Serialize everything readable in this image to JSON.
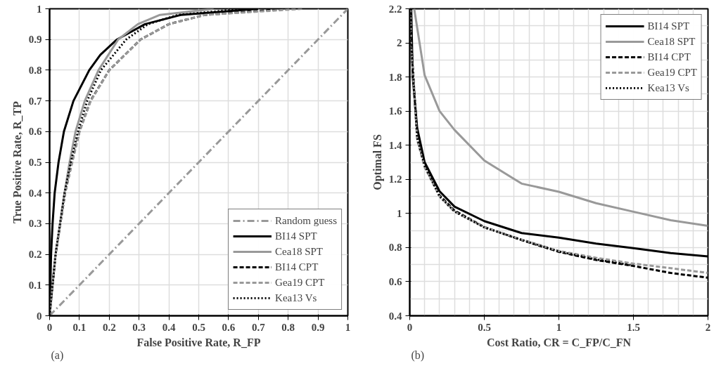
{
  "chart_data": [
    {
      "type": "line",
      "xlabel": "False Positive Rate, R_FP",
      "ylabel": "True Positive Rate, R_TP",
      "annotations": [
        "(a)"
      ],
      "xlim": [
        0,
        1
      ],
      "ylim": [
        0,
        1
      ],
      "xticks": [
        0,
        0.1,
        0.2,
        0.3,
        0.4,
        0.5,
        0.6,
        0.7,
        0.8,
        0.9,
        1
      ],
      "yticks": [
        0,
        0.1,
        0.2,
        0.3,
        0.4,
        0.5,
        0.6,
        0.7,
        0.8,
        0.9,
        1
      ],
      "grid": true,
      "legend": "bottom right",
      "series": [
        {
          "name": "Random guess",
          "color": "#999999",
          "line_style": "dashdot",
          "x": [
            0,
            1
          ],
          "values": [
            0,
            1
          ]
        },
        {
          "name": "BI14 SPT",
          "color": "#000000",
          "line_style": "solid",
          "x": [
            0,
            0.005,
            0.01,
            0.017,
            0.03,
            0.048,
            0.08,
            0.133,
            0.17,
            0.226,
            0.32,
            0.44,
            0.7
          ],
          "values": [
            0,
            0.2,
            0.3,
            0.4,
            0.5,
            0.6,
            0.7,
            0.8,
            0.85,
            0.9,
            0.95,
            0.98,
            1
          ]
        },
        {
          "name": "Cea18 SPT",
          "color": "#999999",
          "line_style": "solid",
          "x": [
            0,
            0.01,
            0.02,
            0.035,
            0.05,
            0.067,
            0.087,
            0.118,
            0.164,
            0.23,
            0.296,
            0.37,
            0.55
          ],
          "values": [
            0,
            0.1,
            0.2,
            0.3,
            0.4,
            0.5,
            0.6,
            0.7,
            0.8,
            0.9,
            0.95,
            0.98,
            1
          ]
        },
        {
          "name": "BI14 CPT",
          "color": "#000000",
          "line_style": "dashed",
          "x": [
            0,
            0.01,
            0.02,
            0.036,
            0.052,
            0.075,
            0.1,
            0.137,
            0.2,
            0.305,
            0.4,
            0.52,
            0.8
          ],
          "values": [
            0,
            0.1,
            0.2,
            0.3,
            0.4,
            0.5,
            0.6,
            0.7,
            0.8,
            0.9,
            0.95,
            0.98,
            1
          ]
        },
        {
          "name": "Gea19 CPT",
          "color": "#999999",
          "line_style": "dashed",
          "x": [
            0,
            0.01,
            0.02,
            0.036,
            0.052,
            0.076,
            0.1,
            0.138,
            0.2,
            0.305,
            0.4,
            0.52,
            0.85
          ],
          "values": [
            0,
            0.1,
            0.2,
            0.3,
            0.4,
            0.5,
            0.6,
            0.7,
            0.8,
            0.9,
            0.95,
            0.98,
            1
          ]
        },
        {
          "name": "Kea13 Vs",
          "color": "#000000",
          "line_style": "dotted",
          "x": [
            0,
            0.01,
            0.02,
            0.035,
            0.05,
            0.071,
            0.095,
            0.126,
            0.172,
            0.257,
            0.33,
            0.43,
            0.65
          ],
          "values": [
            0,
            0.1,
            0.2,
            0.3,
            0.4,
            0.5,
            0.6,
            0.7,
            0.8,
            0.9,
            0.95,
            0.98,
            1
          ]
        }
      ]
    },
    {
      "type": "line",
      "xlabel": "Cost Ratio, CR = C_FP/C_FN",
      "ylabel": "Optimal FS",
      "annotations": [
        "(b)"
      ],
      "xlim": [
        0,
        2
      ],
      "ylim": [
        0.4,
        2.2
      ],
      "xticks": [
        0,
        0.5,
        1,
        1.5,
        2
      ],
      "yticks": [
        0.4,
        0.6,
        0.8,
        1,
        1.2,
        1.4,
        1.6,
        1.8,
        2,
        2.2
      ],
      "grid": true,
      "legend": "top right",
      "series": [
        {
          "name": "BI14 SPT",
          "color": "#000000",
          "line_style": "solid",
          "x": [
            0.01,
            0.02,
            0.05,
            0.1,
            0.2,
            0.3,
            0.5,
            0.75,
            1,
            1.25,
            1.5,
            1.75,
            2
          ],
          "values": [
            2.2,
            1.8,
            1.5,
            1.3,
            1.13,
            1.04,
            0.955,
            0.885,
            0.858,
            0.823,
            0.796,
            0.768,
            0.748
          ]
        },
        {
          "name": "Cea18 SPT",
          "color": "#999999",
          "line_style": "solid",
          "x": [
            0.03,
            0.1,
            0.2,
            0.3,
            0.5,
            0.75,
            1,
            1.25,
            1.5,
            1.75,
            2
          ],
          "values": [
            2.2,
            1.81,
            1.6,
            1.49,
            1.31,
            1.175,
            1.127,
            1.06,
            1.01,
            0.96,
            0.927
          ]
        },
        {
          "name": "BI14 CPT",
          "color": "#000000",
          "line_style": "dashed",
          "x": [
            0.005,
            0.01,
            0.05,
            0.1,
            0.2,
            0.3,
            0.5,
            0.75,
            1,
            1.25,
            1.5,
            1.75,
            2
          ],
          "values": [
            2.2,
            2.0,
            1.45,
            1.28,
            1.106,
            1.017,
            0.92,
            0.844,
            0.775,
            0.727,
            0.692,
            0.651,
            0.623
          ]
        },
        {
          "name": "Gea19 CPT",
          "color": "#999999",
          "line_style": "dashed",
          "x": [
            0.005,
            0.01,
            0.05,
            0.1,
            0.2,
            0.3,
            0.5,
            0.75,
            1,
            1.25,
            1.5,
            1.75,
            2
          ],
          "values": [
            2.2,
            1.98,
            1.43,
            1.27,
            1.1,
            1.01,
            0.92,
            0.847,
            0.78,
            0.74,
            0.706,
            0.679,
            0.651
          ]
        },
        {
          "name": "Kea13 Vs",
          "color": "#000000",
          "line_style": "dotted",
          "x": [
            0.005,
            0.01,
            0.05,
            0.1,
            0.2,
            0.3,
            0.5,
            0.75,
            1,
            1.25,
            1.5
          ],
          "values": [
            2.2,
            1.99,
            1.44,
            1.28,
            1.1,
            1.012,
            0.918,
            0.845,
            0.777,
            0.73,
            0.695
          ]
        }
      ]
    }
  ]
}
